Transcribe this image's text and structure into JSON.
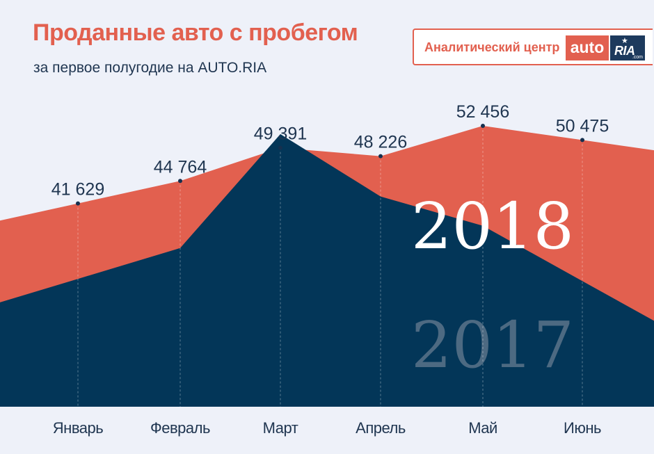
{
  "title": "Проданные авто с пробегом",
  "subtitle": "за первое полугодие на AUTO.RIA",
  "logo": {
    "caption": "Аналитический центр",
    "brand_auto": "auto",
    "brand_ria": "RIA",
    "brand_domain": ".com"
  },
  "colors": {
    "accent": "#e2604f",
    "navy": "#033658",
    "background": "#eef1f9",
    "label_text": "#1f3550",
    "watermark_2017": "#4d6a82",
    "watermark_2018": "#ffffff"
  },
  "chart_data": {
    "type": "area",
    "categories": [
      "Январь",
      "Февраль",
      "Март",
      "Апрель",
      "Май",
      "Июнь"
    ],
    "ylim": [
      0,
      60000
    ],
    "series": [
      {
        "name": "2018",
        "values": [
          41629,
          44764,
          49391,
          48226,
          52456,
          50475
        ],
        "labels": [
          "41 629",
          "44 764",
          "49 391",
          "48 226",
          "52 456",
          "50 475"
        ]
      },
      {
        "name": "2017",
        "values": [
          31100,
          35400,
          51300,
          42600,
          38500,
          30800
        ]
      }
    ]
  }
}
